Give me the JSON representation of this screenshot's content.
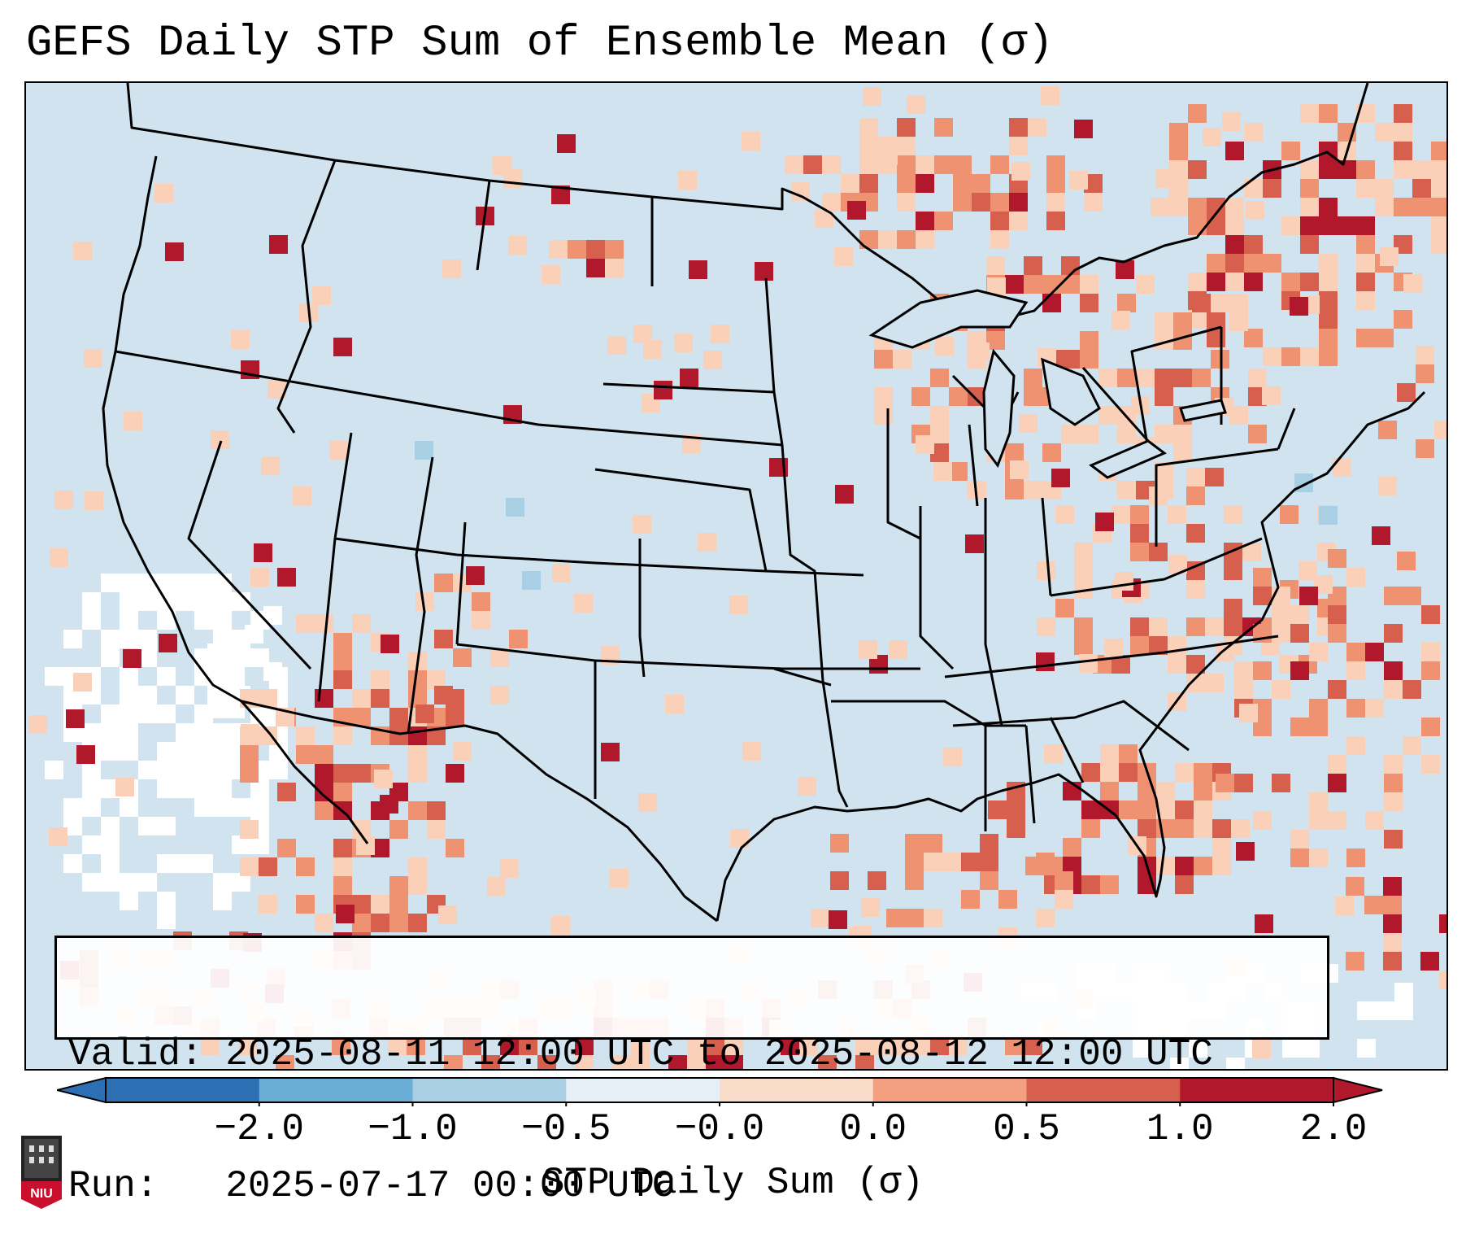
{
  "title": "GEFS Daily STP Sum of Ensemble Mean (σ)",
  "info": {
    "valid_label": "Valid:",
    "valid_value": "2025-08-11 12:00 UTC to 2025-08-12 12:00 UTC",
    "run_label": "Run:",
    "run_value": "2025-07-17 00:00 UTC"
  },
  "colorbar": {
    "label": "STP Daily Sum (σ)",
    "ticks": [
      "−2.0",
      "−1.0",
      "−0.5",
      "−0.0",
      "0.0",
      "0.5",
      "1.0",
      "2.0"
    ],
    "colors": [
      "#2c6fb2",
      "#6aaed6",
      "#a9cfe5",
      "#e6eff6",
      "#f9dcca",
      "#f2a07f",
      "#d6604d",
      "#b2182b"
    ]
  },
  "legend_colors": {
    "ocean_background": "#d1e3ef",
    "white_low": "#ffffff",
    "light_positive": "#fbd0b9",
    "medium_positive": "#ee9272",
    "strong_positive": "#d6604d",
    "very_strong_positive": "#b2182b",
    "light_negative": "#a9cfe5"
  },
  "logo": {
    "text": "NIU",
    "color": "#c8102e"
  }
}
